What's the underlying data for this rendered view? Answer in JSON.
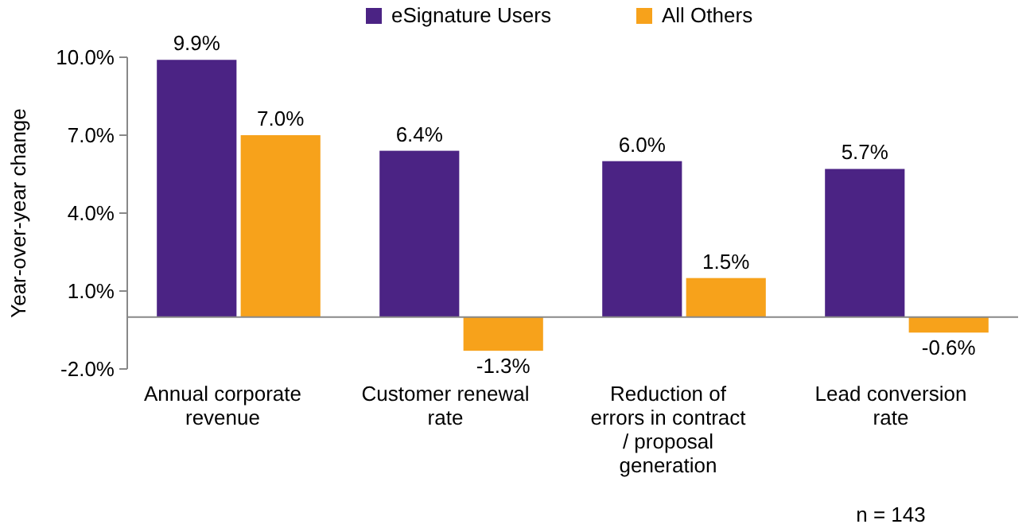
{
  "chart_data": {
    "type": "bar",
    "ylabel": "Year-over-year change",
    "categories": [
      "Annual corporate revenue",
      "Customer renewal rate",
      "Reduction of errors in contract / proposal generation",
      "Lead conversion rate"
    ],
    "series": [
      {
        "name": "eSignature Users",
        "color": "#4b2384",
        "values": [
          9.9,
          6.4,
          6.0,
          5.7
        ],
        "value_labels": [
          "9.9%",
          "6.4%",
          "6.0%",
          "5.7%"
        ]
      },
      {
        "name": "All Others",
        "color": "#f7a21b",
        "values": [
          7.0,
          -1.3,
          1.5,
          -0.6
        ],
        "value_labels": [
          "7.0%",
          "-1.3%",
          "1.5%",
          "-0.6%"
        ]
      }
    ],
    "ylim": [
      -2,
      10
    ],
    "yticks": [
      {
        "value": -2,
        "label": "-2.0%"
      },
      {
        "value": 1,
        "label": "1.0%"
      },
      {
        "value": 4,
        "label": "4.0%"
      },
      {
        "value": 7,
        "label": "7.0%"
      },
      {
        "value": 10,
        "label": "10.0%"
      }
    ],
    "grid": false,
    "legend": "top",
    "annotations": [
      "n = 143"
    ]
  }
}
